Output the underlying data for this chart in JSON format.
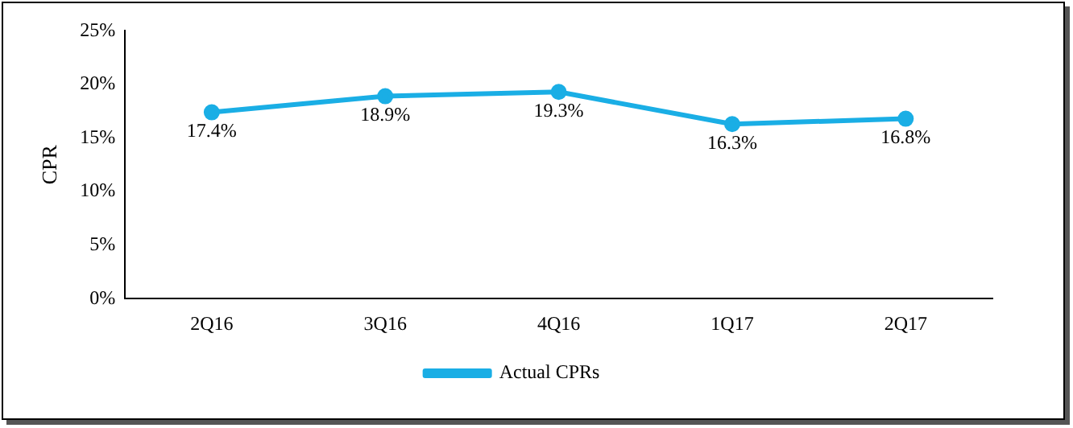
{
  "chart_data": {
    "type": "line",
    "ylabel": "CPR",
    "categories": [
      "2Q16",
      "3Q16",
      "4Q16",
      "1Q17",
      "2Q17"
    ],
    "series": [
      {
        "name": "Actual CPRs",
        "color": "#1aaee5",
        "values": [
          17.4,
          18.9,
          19.3,
          16.3,
          16.8
        ],
        "value_labels": [
          "17.4%",
          "18.9%",
          "19.3%",
          "16.3%",
          "16.8%"
        ]
      }
    ],
    "ylim": [
      0,
      25
    ],
    "yticks": [
      {
        "value": 0,
        "label": "0%"
      },
      {
        "value": 5,
        "label": "5%"
      },
      {
        "value": 10,
        "label": "10%"
      },
      {
        "value": 15,
        "label": "15%"
      },
      {
        "value": 20,
        "label": "20%"
      },
      {
        "value": 25,
        "label": "25%"
      }
    ],
    "grid": false,
    "legend": "bottom",
    "marker": "circle",
    "line_style": "solid"
  }
}
